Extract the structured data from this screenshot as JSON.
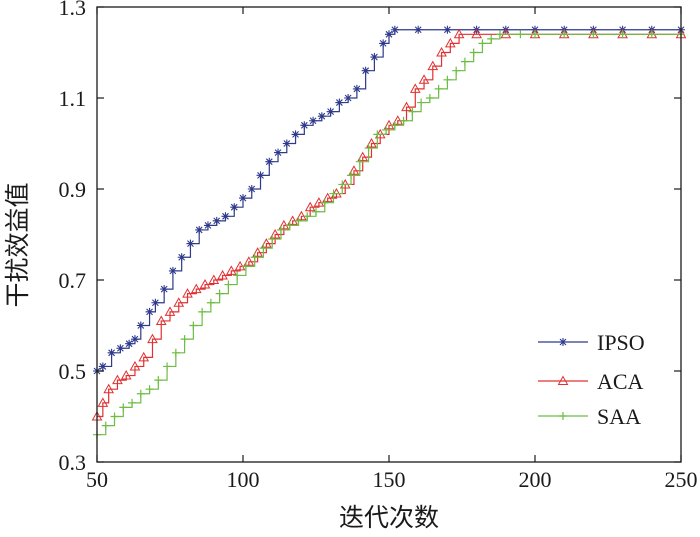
{
  "chart_data": {
    "type": "line",
    "title": "",
    "xlabel": "迭代次数",
    "ylabel": "干扰效益值",
    "xlim": [
      50,
      250
    ],
    "ylim": [
      0.3,
      1.3
    ],
    "xticks": [
      50,
      100,
      150,
      200,
      250
    ],
    "yticks": [
      0.3,
      0.5,
      0.7,
      0.9,
      1.1,
      1.3
    ],
    "xtick_labels": [
      "50",
      "100",
      "150",
      "200",
      "250"
    ],
    "ytick_labels": [
      "0.3",
      "0.5",
      "0.7",
      "0.9",
      "1.1",
      "1.3"
    ],
    "grid": false,
    "legend_position": "bottom-right",
    "series": [
      {
        "name": "IPSO",
        "color": "#2e3a8c",
        "marker": "asterisk",
        "points": [
          [
            50,
            0.5
          ],
          [
            52,
            0.51
          ],
          [
            55,
            0.54
          ],
          [
            58,
            0.55
          ],
          [
            61,
            0.56
          ],
          [
            63,
            0.57
          ],
          [
            65,
            0.6
          ],
          [
            68,
            0.63
          ],
          [
            70,
            0.65
          ],
          [
            73,
            0.68
          ],
          [
            76,
            0.72
          ],
          [
            79,
            0.75
          ],
          [
            82,
            0.78
          ],
          [
            85,
            0.81
          ],
          [
            88,
            0.82
          ],
          [
            91,
            0.83
          ],
          [
            94,
            0.84
          ],
          [
            97,
            0.86
          ],
          [
            100,
            0.88
          ],
          [
            103,
            0.9
          ],
          [
            106,
            0.93
          ],
          [
            109,
            0.96
          ],
          [
            112,
            0.98
          ],
          [
            115,
            1.0
          ],
          [
            118,
            1.02
          ],
          [
            121,
            1.04
          ],
          [
            124,
            1.05
          ],
          [
            127,
            1.06
          ],
          [
            130,
            1.07
          ],
          [
            133,
            1.09
          ],
          [
            136,
            1.1
          ],
          [
            139,
            1.12
          ],
          [
            142,
            1.16
          ],
          [
            145,
            1.19
          ],
          [
            148,
            1.22
          ],
          [
            150,
            1.24
          ],
          [
            152,
            1.25
          ],
          [
            160,
            1.25
          ],
          [
            170,
            1.25
          ],
          [
            180,
            1.25
          ],
          [
            190,
            1.25
          ],
          [
            200,
            1.25
          ],
          [
            210,
            1.25
          ],
          [
            220,
            1.25
          ],
          [
            230,
            1.25
          ],
          [
            240,
            1.25
          ],
          [
            250,
            1.25
          ]
        ]
      },
      {
        "name": "ACA",
        "color": "#e03030",
        "marker": "triangle",
        "points": [
          [
            50,
            0.4
          ],
          [
            52,
            0.43
          ],
          [
            54,
            0.46
          ],
          [
            57,
            0.48
          ],
          [
            60,
            0.49
          ],
          [
            63,
            0.51
          ],
          [
            66,
            0.53
          ],
          [
            69,
            0.57
          ],
          [
            72,
            0.61
          ],
          [
            75,
            0.63
          ],
          [
            78,
            0.65
          ],
          [
            81,
            0.67
          ],
          [
            84,
            0.68
          ],
          [
            87,
            0.69
          ],
          [
            90,
            0.7
          ],
          [
            93,
            0.71
          ],
          [
            96,
            0.72
          ],
          [
            99,
            0.73
          ],
          [
            102,
            0.74
          ],
          [
            105,
            0.76
          ],
          [
            108,
            0.78
          ],
          [
            111,
            0.8
          ],
          [
            114,
            0.82
          ],
          [
            117,
            0.83
          ],
          [
            120,
            0.84
          ],
          [
            123,
            0.86
          ],
          [
            126,
            0.87
          ],
          [
            129,
            0.88
          ],
          [
            132,
            0.89
          ],
          [
            135,
            0.91
          ],
          [
            138,
            0.94
          ],
          [
            141,
            0.97
          ],
          [
            144,
            1.0
          ],
          [
            147,
            1.02
          ],
          [
            150,
            1.04
          ],
          [
            153,
            1.05
          ],
          [
            156,
            1.08
          ],
          [
            159,
            1.12
          ],
          [
            162,
            1.14
          ],
          [
            165,
            1.17
          ],
          [
            168,
            1.2
          ],
          [
            171,
            1.22
          ],
          [
            174,
            1.24
          ],
          [
            180,
            1.24
          ],
          [
            190,
            1.24
          ],
          [
            200,
            1.24
          ],
          [
            210,
            1.24
          ],
          [
            220,
            1.24
          ],
          [
            230,
            1.24
          ],
          [
            240,
            1.24
          ],
          [
            250,
            1.24
          ]
        ]
      },
      {
        "name": "SAA",
        "color": "#6dbd45",
        "marker": "plus",
        "points": [
          [
            50,
            0.36
          ],
          [
            53,
            0.38
          ],
          [
            56,
            0.4
          ],
          [
            59,
            0.42
          ],
          [
            62,
            0.43
          ],
          [
            65,
            0.45
          ],
          [
            68,
            0.46
          ],
          [
            71,
            0.48
          ],
          [
            74,
            0.51
          ],
          [
            77,
            0.54
          ],
          [
            80,
            0.57
          ],
          [
            83,
            0.6
          ],
          [
            86,
            0.63
          ],
          [
            89,
            0.65
          ],
          [
            92,
            0.67
          ],
          [
            95,
            0.69
          ],
          [
            98,
            0.71
          ],
          [
            101,
            0.73
          ],
          [
            104,
            0.75
          ],
          [
            107,
            0.77
          ],
          [
            110,
            0.79
          ],
          [
            113,
            0.81
          ],
          [
            116,
            0.82
          ],
          [
            119,
            0.83
          ],
          [
            122,
            0.84
          ],
          [
            125,
            0.85
          ],
          [
            128,
            0.87
          ],
          [
            131,
            0.89
          ],
          [
            134,
            0.91
          ],
          [
            137,
            0.93
          ],
          [
            140,
            0.96
          ],
          [
            143,
            0.99
          ],
          [
            146,
            1.02
          ],
          [
            149,
            1.03
          ],
          [
            152,
            1.04
          ],
          [
            155,
            1.05
          ],
          [
            158,
            1.07
          ],
          [
            161,
            1.09
          ],
          [
            164,
            1.1
          ],
          [
            167,
            1.12
          ],
          [
            170,
            1.14
          ],
          [
            173,
            1.16
          ],
          [
            176,
            1.18
          ],
          [
            179,
            1.2
          ],
          [
            182,
            1.22
          ],
          [
            185,
            1.23
          ],
          [
            188,
            1.24
          ],
          [
            195,
            1.24
          ],
          [
            200,
            1.24
          ],
          [
            210,
            1.24
          ],
          [
            220,
            1.24
          ],
          [
            230,
            1.24
          ],
          [
            240,
            1.24
          ],
          [
            250,
            1.24
          ]
        ]
      }
    ]
  }
}
